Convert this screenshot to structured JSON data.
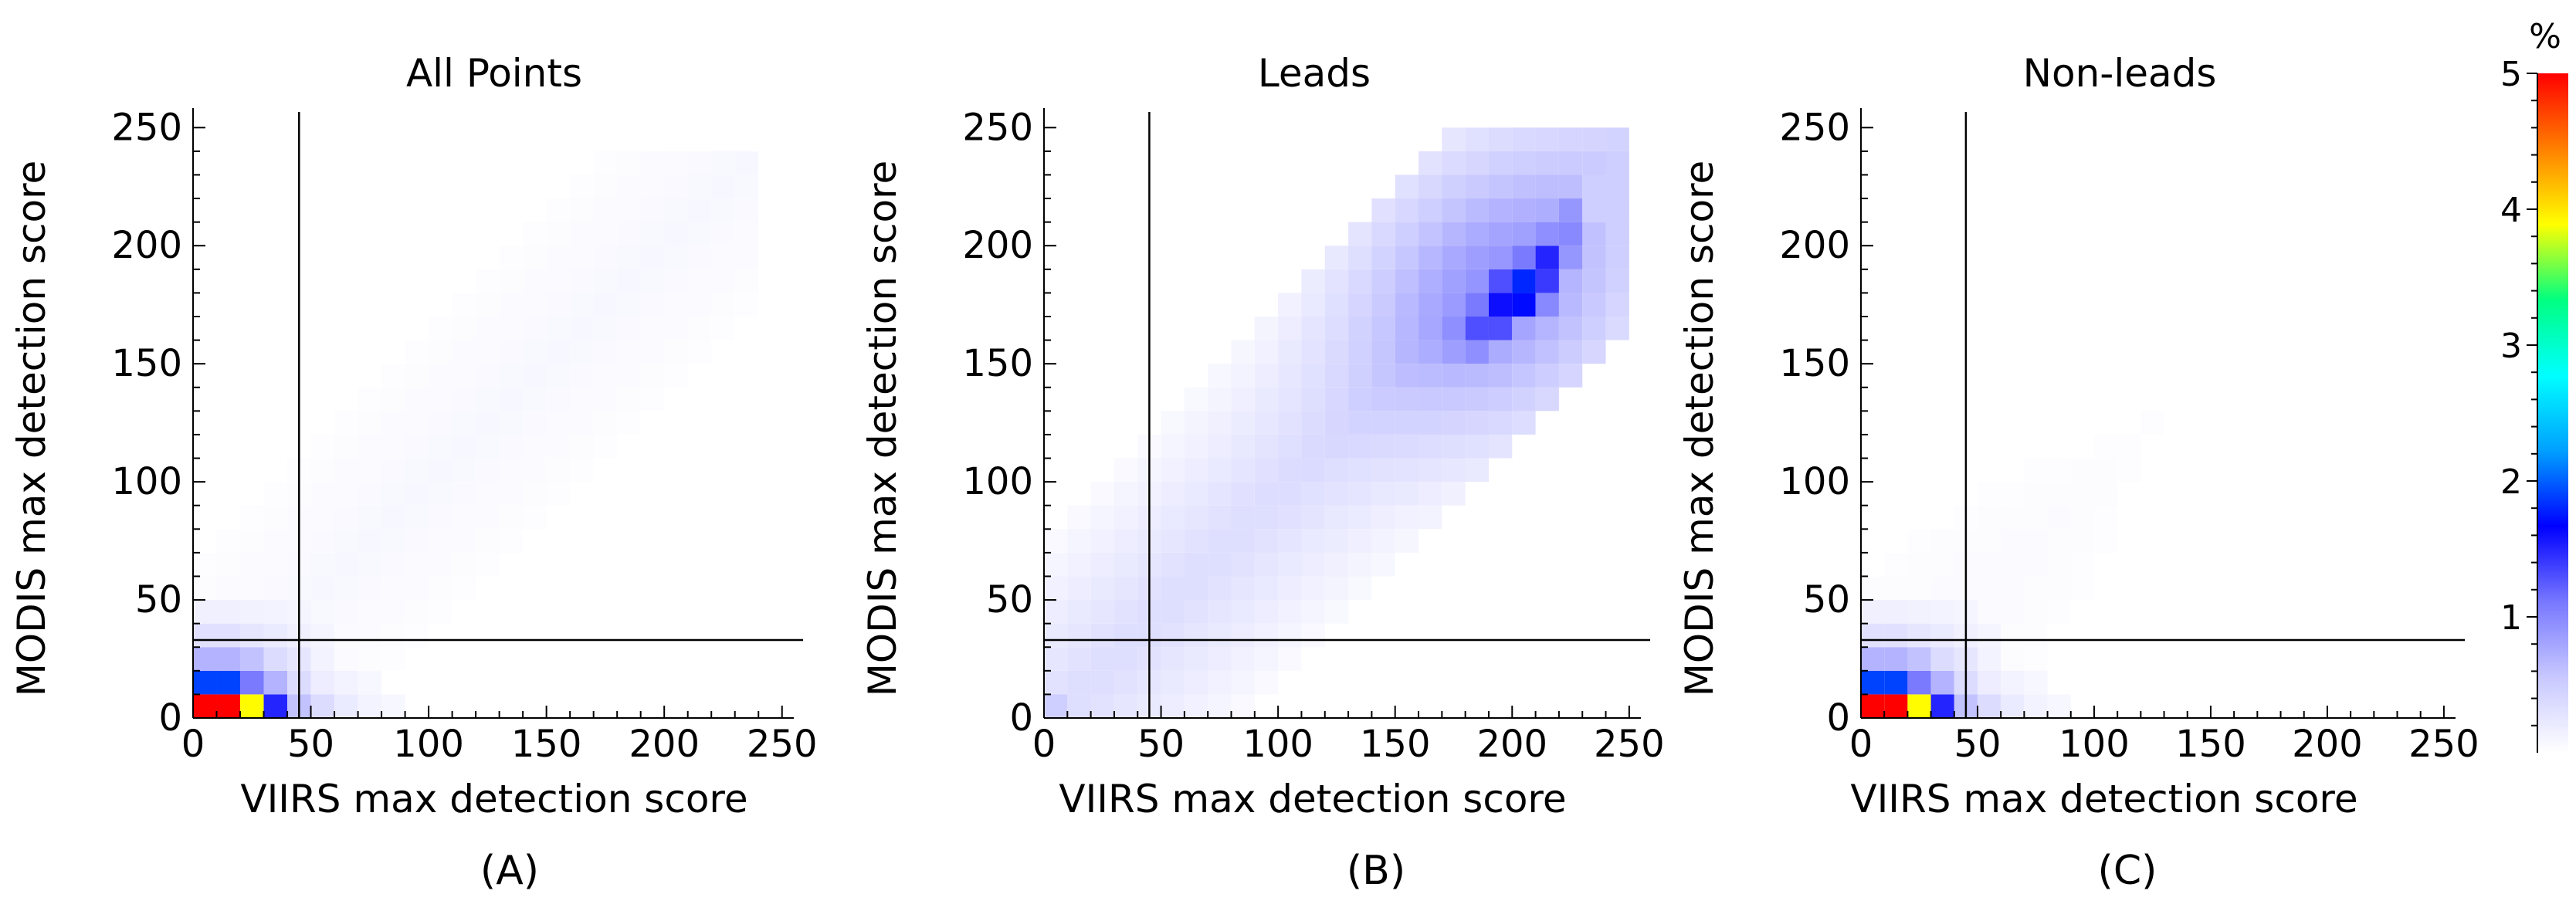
{
  "chart_data": [
    {
      "type": "heatmap",
      "panel_label": "(A)",
      "title": "All Points",
      "xlabel": "VIIRS max detection score",
      "ylabel": "MODIS max detection score",
      "xlim": [
        0,
        255
      ],
      "ylim": [
        0,
        255
      ],
      "xticks": [
        0,
        50,
        100,
        150,
        200,
        250
      ],
      "yticks": [
        0,
        50,
        100,
        150,
        200,
        250
      ],
      "threshold_lines": {
        "x": 45,
        "y": 33
      },
      "bin_size": 10,
      "value_unit": "%",
      "cells": [
        {
          "x": 0,
          "y": 0,
          "v": 5.0
        },
        {
          "x": 10,
          "y": 0,
          "v": 5.0
        },
        {
          "x": 20,
          "y": 0,
          "v": 3.9
        },
        {
          "x": 30,
          "y": 0,
          "v": 1.5
        },
        {
          "x": 40,
          "y": 0,
          "v": 0.6
        },
        {
          "x": 50,
          "y": 0,
          "v": 0.35
        },
        {
          "x": 60,
          "y": 0,
          "v": 0.2
        },
        {
          "x": 70,
          "y": 0,
          "v": 0.12
        },
        {
          "x": 80,
          "y": 0,
          "v": 0.08
        },
        {
          "x": 0,
          "y": 10,
          "v": 1.9
        },
        {
          "x": 10,
          "y": 10,
          "v": 1.9
        },
        {
          "x": 20,
          "y": 10,
          "v": 1.1
        },
        {
          "x": 30,
          "y": 10,
          "v": 0.7
        },
        {
          "x": 40,
          "y": 10,
          "v": 0.35
        },
        {
          "x": 50,
          "y": 10,
          "v": 0.18
        },
        {
          "x": 60,
          "y": 10,
          "v": 0.12
        },
        {
          "x": 70,
          "y": 10,
          "v": 0.08
        },
        {
          "x": 0,
          "y": 20,
          "v": 0.7
        },
        {
          "x": 10,
          "y": 20,
          "v": 0.7
        },
        {
          "x": 20,
          "y": 20,
          "v": 0.6
        },
        {
          "x": 30,
          "y": 20,
          "v": 0.35
        },
        {
          "x": 40,
          "y": 20,
          "v": 0.25
        },
        {
          "x": 50,
          "y": 20,
          "v": 0.12
        },
        {
          "x": 0,
          "y": 30,
          "v": 0.3
        },
        {
          "x": 10,
          "y": 30,
          "v": 0.3
        },
        {
          "x": 20,
          "y": 30,
          "v": 0.25
        },
        {
          "x": 30,
          "y": 30,
          "v": 0.2
        },
        {
          "x": 40,
          "y": 30,
          "v": 0.15
        },
        {
          "x": 50,
          "y": 30,
          "v": 0.1
        },
        {
          "x": 0,
          "y": 40,
          "v": 0.15
        },
        {
          "x": 10,
          "y": 40,
          "v": 0.15
        },
        {
          "x": 20,
          "y": 40,
          "v": 0.13
        },
        {
          "x": 30,
          "y": 40,
          "v": 0.12
        },
        {
          "x": 40,
          "y": 40,
          "v": 0.1
        }
      ],
      "diffuse_region": {
        "x_from": 0,
        "x_to": 240,
        "band_center_offset": 0,
        "band_width": 70,
        "max_y": 240,
        "level": 0.08
      }
    },
    {
      "type": "heatmap",
      "panel_label": "(B)",
      "title": "Leads",
      "xlabel": "VIIRS max detection score",
      "ylabel": "MODIS max detection score",
      "xlim": [
        0,
        255
      ],
      "ylim": [
        0,
        255
      ],
      "xticks": [
        0,
        50,
        100,
        150,
        200,
        250
      ],
      "yticks": [
        0,
        50,
        100,
        150,
        200,
        250
      ],
      "threshold_lines": {
        "x": 45,
        "y": 33
      },
      "bin_size": 10,
      "value_unit": "%",
      "cells": [
        {
          "x": 0,
          "y": 0,
          "v": 0.5
        },
        {
          "x": 170,
          "y": 150,
          "v": 0.85
        },
        {
          "x": 180,
          "y": 150,
          "v": 0.95
        },
        {
          "x": 190,
          "y": 150,
          "v": 0.75
        },
        {
          "x": 170,
          "y": 160,
          "v": 0.95
        },
        {
          "x": 180,
          "y": 160,
          "v": 1.3
        },
        {
          "x": 190,
          "y": 160,
          "v": 1.3
        },
        {
          "x": 200,
          "y": 160,
          "v": 0.8
        },
        {
          "x": 180,
          "y": 170,
          "v": 1.1
        },
        {
          "x": 190,
          "y": 170,
          "v": 1.6
        },
        {
          "x": 200,
          "y": 170,
          "v": 1.7
        },
        {
          "x": 210,
          "y": 170,
          "v": 1.0
        },
        {
          "x": 190,
          "y": 180,
          "v": 1.3
        },
        {
          "x": 200,
          "y": 180,
          "v": 1.8
        },
        {
          "x": 210,
          "y": 180,
          "v": 1.4
        },
        {
          "x": 200,
          "y": 190,
          "v": 1.1
        },
        {
          "x": 210,
          "y": 190,
          "v": 1.5
        },
        {
          "x": 220,
          "y": 190,
          "v": 0.9
        },
        {
          "x": 210,
          "y": 200,
          "v": 0.95
        },
        {
          "x": 220,
          "y": 200,
          "v": 1.0
        },
        {
          "x": 220,
          "y": 210,
          "v": 0.9
        },
        {
          "x": 230,
          "y": 210,
          "v": 0.5
        },
        {
          "x": 230,
          "y": 220,
          "v": 0.5
        }
      ],
      "diffuse_region": {
        "x_from": 0,
        "x_to": 250,
        "band_center_offset": -5,
        "band_width": 80,
        "max_y": 250,
        "level": 0.35
      }
    },
    {
      "type": "heatmap",
      "panel_label": "(C)",
      "title": "Non-leads",
      "xlabel": "VIIRS max detection score",
      "ylabel": "MODIS max detection score",
      "xlim": [
        0,
        255
      ],
      "ylim": [
        0,
        255
      ],
      "xticks": [
        0,
        50,
        100,
        150,
        200,
        250
      ],
      "yticks": [
        0,
        50,
        100,
        150,
        200,
        250
      ],
      "threshold_lines": {
        "x": 45,
        "y": 33
      },
      "bin_size": 10,
      "value_unit": "%",
      "cells": [
        {
          "x": 0,
          "y": 0,
          "v": 5.0
        },
        {
          "x": 10,
          "y": 0,
          "v": 5.0
        },
        {
          "x": 20,
          "y": 0,
          "v": 3.9
        },
        {
          "x": 30,
          "y": 0,
          "v": 1.5
        },
        {
          "x": 40,
          "y": 0,
          "v": 0.6
        },
        {
          "x": 50,
          "y": 0,
          "v": 0.35
        },
        {
          "x": 60,
          "y": 0,
          "v": 0.2
        },
        {
          "x": 70,
          "y": 0,
          "v": 0.12
        },
        {
          "x": 80,
          "y": 0,
          "v": 0.08
        },
        {
          "x": 0,
          "y": 10,
          "v": 1.9
        },
        {
          "x": 10,
          "y": 10,
          "v": 1.9
        },
        {
          "x": 20,
          "y": 10,
          "v": 1.1
        },
        {
          "x": 30,
          "y": 10,
          "v": 0.7
        },
        {
          "x": 40,
          "y": 10,
          "v": 0.35
        },
        {
          "x": 50,
          "y": 10,
          "v": 0.18
        },
        {
          "x": 60,
          "y": 10,
          "v": 0.12
        },
        {
          "x": 70,
          "y": 10,
          "v": 0.08
        },
        {
          "x": 0,
          "y": 20,
          "v": 0.7
        },
        {
          "x": 10,
          "y": 20,
          "v": 0.7
        },
        {
          "x": 20,
          "y": 20,
          "v": 0.6
        },
        {
          "x": 30,
          "y": 20,
          "v": 0.35
        },
        {
          "x": 40,
          "y": 20,
          "v": 0.25
        },
        {
          "x": 50,
          "y": 20,
          "v": 0.12
        },
        {
          "x": 0,
          "y": 30,
          "v": 0.3
        },
        {
          "x": 10,
          "y": 30,
          "v": 0.3
        },
        {
          "x": 20,
          "y": 30,
          "v": 0.25
        },
        {
          "x": 30,
          "y": 30,
          "v": 0.2
        },
        {
          "x": 40,
          "y": 30,
          "v": 0.15
        },
        {
          "x": 50,
          "y": 30,
          "v": 0.1
        },
        {
          "x": 0,
          "y": 40,
          "v": 0.15
        },
        {
          "x": 10,
          "y": 40,
          "v": 0.15
        },
        {
          "x": 20,
          "y": 40,
          "v": 0.13
        },
        {
          "x": 30,
          "y": 40,
          "v": 0.12
        },
        {
          "x": 40,
          "y": 40,
          "v": 0.1
        }
      ],
      "diffuse_region": {
        "x_from": 0,
        "x_to": 160,
        "band_center_offset": 0,
        "band_width": 90,
        "max_y": 130,
        "level": 0.07
      }
    }
  ],
  "colorbar": {
    "unit_label": "%",
    "range": [
      0,
      5
    ],
    "ticks": [
      1,
      2,
      3,
      4,
      5
    ],
    "colors": [
      "#ffffff",
      "#c8c8ff",
      "#7878ff",
      "#0000ff",
      "#00a0ff",
      "#00ffff",
      "#00ff80",
      "#ffff00",
      "#ff8000",
      "#ff0000"
    ]
  }
}
